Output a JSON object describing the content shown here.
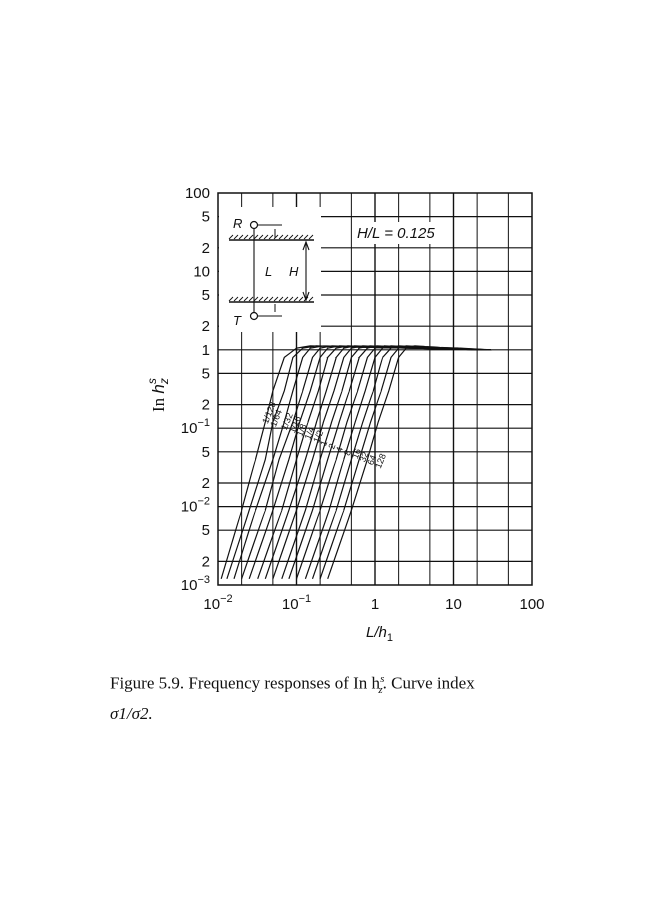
{
  "caption": {
    "line1": "Figure 5.9.  Frequency responses of In h",
    "sup": "s",
    "sub": "z",
    "line1_end": ".  Curve index",
    "line2": "σ1/σ2."
  },
  "chart_data": {
    "type": "line",
    "x_scale": "log",
    "y_scale": "log",
    "xlim": [
      0.01,
      100
    ],
    "ylim": [
      0.001,
      100
    ],
    "xlabel": "L/h1",
    "ylabel": "In h_z^s",
    "x_ticks": [
      {
        "value": 0.01,
        "base": "10",
        "exp": "−2"
      },
      {
        "value": 0.1,
        "base": "10",
        "exp": "−1"
      },
      {
        "value": 1,
        "base": "1",
        "exp": ""
      },
      {
        "value": 10,
        "base": "10",
        "exp": ""
      },
      {
        "value": 100,
        "base": "100",
        "exp": ""
      }
    ],
    "y_ticks": [
      {
        "value": 100,
        "base": "100",
        "exp": ""
      },
      {
        "value": 50,
        "base": "5",
        "exp": ""
      },
      {
        "value": 20,
        "base": "2",
        "exp": ""
      },
      {
        "value": 10,
        "base": "10",
        "exp": ""
      },
      {
        "value": 5,
        "base": "5",
        "exp": ""
      },
      {
        "value": 2,
        "base": "2",
        "exp": ""
      },
      {
        "value": 1,
        "base": "1",
        "exp": ""
      },
      {
        "value": 0.5,
        "base": "5",
        "exp": ""
      },
      {
        "value": 0.2,
        "base": "2",
        "exp": ""
      },
      {
        "value": 0.1,
        "base": "10",
        "exp": "−1"
      },
      {
        "value": 0.05,
        "base": "5",
        "exp": ""
      },
      {
        "value": 0.02,
        "base": "2",
        "exp": ""
      },
      {
        "value": 0.01,
        "base": "10",
        "exp": "−2"
      },
      {
        "value": 0.005,
        "base": "5",
        "exp": ""
      },
      {
        "value": 0.002,
        "base": "2",
        "exp": ""
      },
      {
        "value": 0.001,
        "base": "10",
        "exp": "−3"
      }
    ],
    "grid": true,
    "annotation": "H/L = 0.125",
    "inset_labels": {
      "receiver": "R",
      "transmitter": "T",
      "separation": "L",
      "height": "H"
    },
    "curve_index_note": "σ1/σ2",
    "series": [
      {
        "name": "1/128",
        "x": [
          0.011,
          0.02,
          0.03,
          0.04,
          0.05,
          0.07,
          0.1,
          0.15,
          0.3,
          1,
          3,
          10,
          30
        ],
        "y": [
          0.0012,
          0.009,
          0.04,
          0.12,
          0.3,
          0.8,
          1.05,
          1.12,
          1.1,
          1.07,
          1.05,
          1.02,
          1.0
        ]
      },
      {
        "name": "1/64",
        "x": [
          0.013,
          0.025,
          0.04,
          0.05,
          0.07,
          0.09,
          0.12,
          0.18,
          0.35,
          1,
          3,
          10,
          30
        ],
        "y": [
          0.0012,
          0.009,
          0.04,
          0.12,
          0.3,
          0.8,
          1.05,
          1.12,
          1.1,
          1.07,
          1.05,
          1.02,
          1.0
        ]
      },
      {
        "name": "1/32",
        "x": [
          0.016,
          0.03,
          0.05,
          0.07,
          0.09,
          0.12,
          0.15,
          0.22,
          0.4,
          1,
          3,
          10,
          30
        ],
        "y": [
          0.0012,
          0.009,
          0.04,
          0.12,
          0.3,
          0.8,
          1.05,
          1.12,
          1.1,
          1.07,
          1.05,
          1.02,
          1.0
        ]
      },
      {
        "name": "1/16",
        "x": [
          0.02,
          0.04,
          0.06,
          0.09,
          0.12,
          0.16,
          0.2,
          0.28,
          0.5,
          1.2,
          3,
          10,
          30
        ],
        "y": [
          0.0012,
          0.009,
          0.04,
          0.12,
          0.3,
          0.8,
          1.05,
          1.12,
          1.1,
          1.07,
          1.05,
          1.02,
          1.0
        ]
      },
      {
        "name": "1/8",
        "x": [
          0.025,
          0.05,
          0.08,
          0.11,
          0.15,
          0.2,
          0.25,
          0.35,
          0.6,
          1.4,
          3,
          10,
          30
        ],
        "y": [
          0.0012,
          0.009,
          0.04,
          0.12,
          0.3,
          0.8,
          1.05,
          1.12,
          1.1,
          1.07,
          1.05,
          1.02,
          1.0
        ]
      },
      {
        "name": "1/4",
        "x": [
          0.032,
          0.065,
          0.1,
          0.14,
          0.19,
          0.25,
          0.32,
          0.45,
          0.75,
          1.6,
          3.5,
          10,
          30
        ],
        "y": [
          0.0012,
          0.009,
          0.04,
          0.12,
          0.3,
          0.8,
          1.05,
          1.12,
          1.1,
          1.07,
          1.05,
          1.02,
          1.0
        ]
      },
      {
        "name": "1/2",
        "x": [
          0.04,
          0.08,
          0.13,
          0.18,
          0.24,
          0.32,
          0.4,
          0.55,
          0.9,
          1.8,
          4,
          10,
          30
        ],
        "y": [
          0.0012,
          0.009,
          0.04,
          0.12,
          0.3,
          0.8,
          1.05,
          1.12,
          1.1,
          1.07,
          1.05,
          1.02,
          1.0
        ]
      },
      {
        "name": "1",
        "x": [
          0.05,
          0.1,
          0.16,
          0.22,
          0.3,
          0.4,
          0.5,
          0.7,
          1.1,
          2.2,
          4.5,
          10,
          30
        ],
        "y": [
          0.0012,
          0.009,
          0.04,
          0.12,
          0.3,
          0.8,
          1.05,
          1.12,
          1.1,
          1.07,
          1.05,
          1.02,
          1.0
        ]
      },
      {
        "name": "2",
        "x": [
          0.065,
          0.13,
          0.2,
          0.28,
          0.38,
          0.5,
          0.63,
          0.85,
          1.3,
          2.6,
          5,
          12,
          30
        ],
        "y": [
          0.0012,
          0.009,
          0.04,
          0.12,
          0.3,
          0.8,
          1.05,
          1.12,
          1.1,
          1.07,
          1.05,
          1.02,
          1.0
        ]
      },
      {
        "name": "4",
        "x": [
          0.08,
          0.16,
          0.25,
          0.35,
          0.47,
          0.63,
          0.8,
          1.05,
          1.6,
          3,
          6,
          12,
          30
        ],
        "y": [
          0.0012,
          0.009,
          0.04,
          0.12,
          0.3,
          0.8,
          1.05,
          1.12,
          1.1,
          1.07,
          1.05,
          1.02,
          1.0
        ]
      },
      {
        "name": "8",
        "x": [
          0.1,
          0.2,
          0.32,
          0.44,
          0.6,
          0.8,
          1.0,
          1.3,
          2.0,
          3.5,
          7,
          14,
          30
        ],
        "y": [
          0.0012,
          0.009,
          0.04,
          0.12,
          0.3,
          0.8,
          1.05,
          1.12,
          1.1,
          1.07,
          1.05,
          1.02,
          1.0
        ]
      },
      {
        "name": "16",
        "x": [
          0.13,
          0.26,
          0.4,
          0.56,
          0.75,
          1.0,
          1.25,
          1.6,
          2.4,
          4.2,
          8,
          15,
          30
        ],
        "y": [
          0.0012,
          0.009,
          0.04,
          0.12,
          0.3,
          0.8,
          1.05,
          1.12,
          1.1,
          1.07,
          1.05,
          1.02,
          1.0
        ]
      },
      {
        "name": "32",
        "x": [
          0.16,
          0.32,
          0.5,
          0.7,
          0.95,
          1.25,
          1.6,
          2.0,
          3.0,
          5,
          9,
          16,
          30
        ],
        "y": [
          0.0012,
          0.009,
          0.04,
          0.12,
          0.3,
          0.8,
          1.05,
          1.12,
          1.1,
          1.07,
          1.05,
          1.02,
          1.0
        ]
      },
      {
        "name": "64",
        "x": [
          0.2,
          0.4,
          0.63,
          0.88,
          1.2,
          1.6,
          2.0,
          2.5,
          3.6,
          6,
          10,
          18,
          30
        ],
        "y": [
          0.0012,
          0.009,
          0.04,
          0.12,
          0.3,
          0.8,
          1.05,
          1.12,
          1.1,
          1.07,
          1.05,
          1.02,
          1.0
        ]
      },
      {
        "name": "128",
        "x": [
          0.25,
          0.5,
          0.8,
          1.1,
          1.5,
          2.0,
          2.5,
          3.2,
          4.5,
          7,
          12,
          20,
          30
        ],
        "y": [
          0.0012,
          0.009,
          0.04,
          0.12,
          0.3,
          0.8,
          1.05,
          1.12,
          1.1,
          1.07,
          1.05,
          1.02,
          1.0
        ]
      }
    ]
  }
}
